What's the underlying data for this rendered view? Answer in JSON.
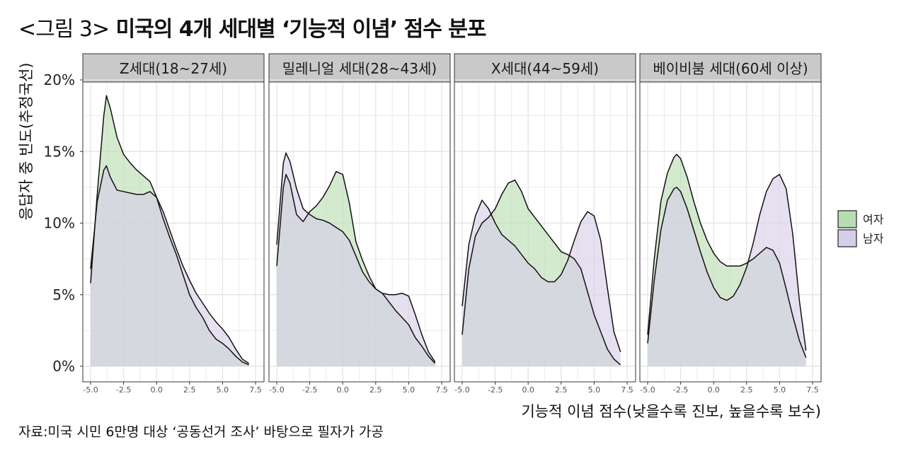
{
  "title_prefix": "<그림 3>",
  "title_main": "미국의 4개 세대별 ‘기능적 이념’ 점수 분포",
  "source_note": "자료:미국 시민 6만명 대상 ‘공동선거 조사’ 바탕으로 필자가 가공",
  "colors": {
    "여자": "#b9ddb2",
    "남자": "#d6cde8",
    "panel_bg": "#ffffff",
    "strip_bg": "#c9c9c9",
    "grid": "#e6e6e6"
  },
  "chart_data": {
    "type": "area",
    "xlabel": "기능적 이념 점수(낮을수록 진보, 높을수록 보수)",
    "ylabel": "응답자 중 빈도(추정국선)",
    "xlim": [
      -5.0,
      7.5
    ],
    "ylim": [
      0,
      20
    ],
    "x_ticks": [
      "-5.0",
      "-2.5",
      "0.0",
      "2.5",
      "5.0",
      "7.5"
    ],
    "y_ticks": [
      "0%",
      "5%",
      "10%",
      "15%",
      "20%"
    ],
    "grid": true,
    "legend_position": "right",
    "legend": [
      "여자",
      "남자"
    ],
    "panels": [
      {
        "label": "Z세대(18~27세)",
        "series": [
          {
            "name": "여자",
            "x": [
              -5.0,
              -4.5,
              -4.0,
              -3.8,
              -3.5,
              -3.0,
              -2.5,
              -2.0,
              -1.5,
              -1.0,
              -0.5,
              0.0,
              0.5,
              1.0,
              1.5,
              2.0,
              2.5,
              3.0,
              3.5,
              4.0,
              4.5,
              5.0,
              5.5,
              6.0,
              6.5,
              7.0
            ],
            "y": [
              5.8,
              12.0,
              17.5,
              18.9,
              18.0,
              16.0,
              14.8,
              14.2,
              13.7,
              13.3,
              12.9,
              11.8,
              10.3,
              9.0,
              7.8,
              6.4,
              5.0,
              4.1,
              3.4,
              2.5,
              1.9,
              1.6,
              1.2,
              0.7,
              0.3,
              0.1
            ]
          },
          {
            "name": "남자",
            "x": [
              -5.0,
              -4.5,
              -4.0,
              -3.8,
              -3.5,
              -3.0,
              -2.5,
              -2.0,
              -1.5,
              -1.0,
              -0.5,
              0.0,
              0.5,
              1.0,
              1.5,
              2.0,
              2.5,
              3.0,
              3.5,
              4.0,
              4.5,
              5.0,
              5.5,
              6.0,
              6.5,
              7.0
            ],
            "y": [
              6.8,
              11.5,
              13.7,
              14.0,
              13.2,
              12.3,
              12.2,
              12.1,
              12.0,
              12.0,
              12.2,
              11.8,
              10.8,
              9.5,
              8.2,
              7.0,
              6.0,
              5.1,
              4.4,
              3.7,
              3.1,
              2.6,
              2.0,
              1.2,
              0.5,
              0.2
            ]
          }
        ]
      },
      {
        "label": "밀레니얼 세대(28~43세)",
        "series": [
          {
            "name": "여자",
            "x": [
              -5.0,
              -4.5,
              -4.3,
              -4.0,
              -3.5,
              -3.0,
              -2.5,
              -2.0,
              -1.5,
              -1.0,
              -0.5,
              0.0,
              0.5,
              1.0,
              1.5,
              2.0,
              2.5,
              3.0,
              3.5,
              4.0,
              4.5,
              5.0,
              5.5,
              6.0,
              6.5,
              7.0
            ],
            "y": [
              7.0,
              12.5,
              13.4,
              12.8,
              10.6,
              10.1,
              10.8,
              11.2,
              11.8,
              12.6,
              13.6,
              13.4,
              11.4,
              8.7,
              7.4,
              6.3,
              5.4,
              5.1,
              4.5,
              3.9,
              3.4,
              2.9,
              2.0,
              1.4,
              0.7,
              0.2
            ]
          },
          {
            "name": "남자",
            "x": [
              -5.0,
              -4.5,
              -4.3,
              -4.0,
              -3.5,
              -3.0,
              -2.5,
              -2.0,
              -1.5,
              -1.0,
              -0.5,
              0.0,
              0.5,
              1.0,
              1.5,
              2.0,
              2.5,
              3.0,
              3.5,
              4.0,
              4.5,
              5.0,
              5.5,
              6.0,
              6.5,
              7.0
            ],
            "y": [
              8.5,
              14.2,
              14.9,
              14.3,
              12.4,
              11.0,
              10.6,
              10.3,
              10.2,
              10.0,
              9.7,
              9.4,
              8.8,
              7.7,
              6.6,
              5.9,
              5.4,
              5.1,
              5.0,
              5.0,
              5.1,
              4.9,
              3.6,
              2.2,
              1.0,
              0.3
            ]
          }
        ]
      },
      {
        "label": "X세대(44~59세)",
        "series": [
          {
            "name": "여자",
            "x": [
              -5.0,
              -4.5,
              -4.0,
              -3.5,
              -3.0,
              -2.5,
              -2.0,
              -1.5,
              -1.0,
              -0.5,
              0.0,
              0.5,
              1.0,
              1.5,
              2.0,
              2.5,
              3.0,
              3.5,
              4.0,
              4.5,
              5.0,
              5.5,
              6.0,
              6.5,
              7.0
            ],
            "y": [
              2.2,
              6.8,
              9.1,
              10.0,
              10.4,
              11.0,
              12.0,
              12.8,
              13.0,
              12.2,
              11.0,
              10.4,
              9.8,
              9.2,
              8.6,
              8.0,
              7.8,
              7.5,
              6.8,
              5.2,
              3.6,
              2.4,
              1.2,
              0.5,
              0.1
            ]
          },
          {
            "name": "남자",
            "x": [
              -5.0,
              -4.5,
              -4.0,
              -3.5,
              -3.0,
              -2.5,
              -2.0,
              -1.5,
              -1.0,
              -0.5,
              0.0,
              0.5,
              1.0,
              1.5,
              2.0,
              2.5,
              3.0,
              3.5,
              4.0,
              4.5,
              5.0,
              5.5,
              6.0,
              6.5,
              7.0
            ],
            "y": [
              4.2,
              8.5,
              10.5,
              11.6,
              11.0,
              10.0,
              9.2,
              8.8,
              8.4,
              7.8,
              7.2,
              6.8,
              6.2,
              5.9,
              5.9,
              6.4,
              7.4,
              8.8,
              10.1,
              10.8,
              10.5,
              8.8,
              5.5,
              2.4,
              1.0
            ]
          }
        ]
      },
      {
        "label": "베이비붐 세대(60세 이상)",
        "series": [
          {
            "name": "여자",
            "x": [
              -5.0,
              -4.5,
              -4.0,
              -3.5,
              -3.0,
              -2.8,
              -2.5,
              -2.0,
              -1.5,
              -1.0,
              -0.5,
              0.0,
              0.5,
              1.0,
              1.5,
              2.0,
              2.5,
              3.0,
              3.5,
              4.0,
              4.5,
              5.0,
              5.5,
              6.0,
              6.5,
              7.0
            ],
            "y": [
              2.2,
              7.5,
              11.5,
              13.5,
              14.6,
              14.8,
              14.5,
              13.2,
              11.5,
              10.0,
              8.8,
              7.9,
              7.3,
              7.0,
              7.0,
              7.0,
              7.2,
              7.5,
              7.9,
              8.3,
              8.1,
              7.2,
              5.4,
              3.5,
              1.8,
              0.6
            ]
          },
          {
            "name": "남자",
            "x": [
              -5.0,
              -4.5,
              -4.0,
              -3.5,
              -3.0,
              -2.8,
              -2.5,
              -2.0,
              -1.5,
              -1.0,
              -0.5,
              0.0,
              0.5,
              1.0,
              1.5,
              2.0,
              2.5,
              3.0,
              3.5,
              4.0,
              4.5,
              5.0,
              5.5,
              6.0,
              6.5,
              7.0
            ],
            "y": [
              1.6,
              6.0,
              9.5,
              11.6,
              12.4,
              12.5,
              12.2,
              11.0,
              9.5,
              8.0,
              6.6,
              5.5,
              4.8,
              4.6,
              4.9,
              5.7,
              6.9,
              8.6,
              10.6,
              12.2,
              13.1,
              13.4,
              12.4,
              9.2,
              4.6,
              1.1
            ]
          }
        ]
      }
    ]
  }
}
